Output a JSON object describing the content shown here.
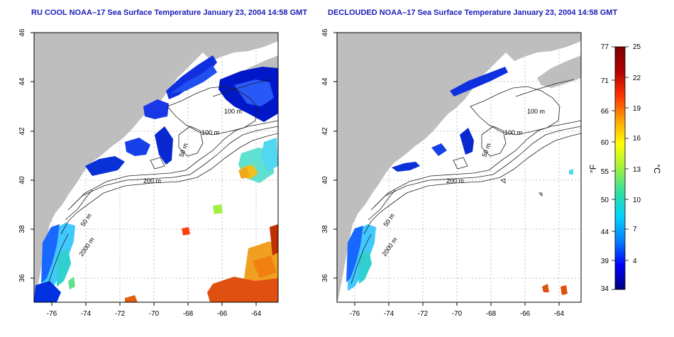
{
  "panels": [
    {
      "title": "RU COOL NOAA–17 Sea Surface Temperature January 23, 2004 14:58 GMT",
      "x_ticks": [
        "-76",
        "-74",
        "-72",
        "-70",
        "-68",
        "-66",
        "-64"
      ],
      "y_ticks": [
        "36",
        "38",
        "40",
        "42",
        "44",
        "46"
      ],
      "contour_labels": [
        "100 m",
        "100 m",
        "50 m",
        "200 m",
        "50 m",
        "2000 m"
      ]
    },
    {
      "title": "DECLOUDED NOAA–17 Sea Surface Temperature January 23, 2004 14:58 GMT",
      "x_ticks": [
        "-76",
        "-74",
        "-72",
        "-70",
        "-68",
        "-66",
        "-64"
      ],
      "y_ticks": [
        "36",
        "38",
        "40",
        "42",
        "44",
        "46"
      ],
      "contour_labels": [
        "100 m",
        "100 m",
        "50 m",
        "200 m",
        "50 m",
        "2000 m"
      ]
    }
  ],
  "colorbar": {
    "f_label": "°F",
    "c_label": "°C",
    "f_ticks": [
      "77",
      "71",
      "66",
      "60",
      "55",
      "50",
      "44",
      "39",
      "34"
    ],
    "c_ticks": [
      "25",
      "22",
      "19",
      "16",
      "13",
      "10",
      "7",
      "4"
    ],
    "colors": [
      "#00007a",
      "#0000ff",
      "#0080ff",
      "#00d0ff",
      "#30e0a0",
      "#a0f040",
      "#ffff00",
      "#ffa000",
      "#ff3000",
      "#b00000",
      "#7a0000"
    ]
  },
  "land_color": "#bebebe"
}
